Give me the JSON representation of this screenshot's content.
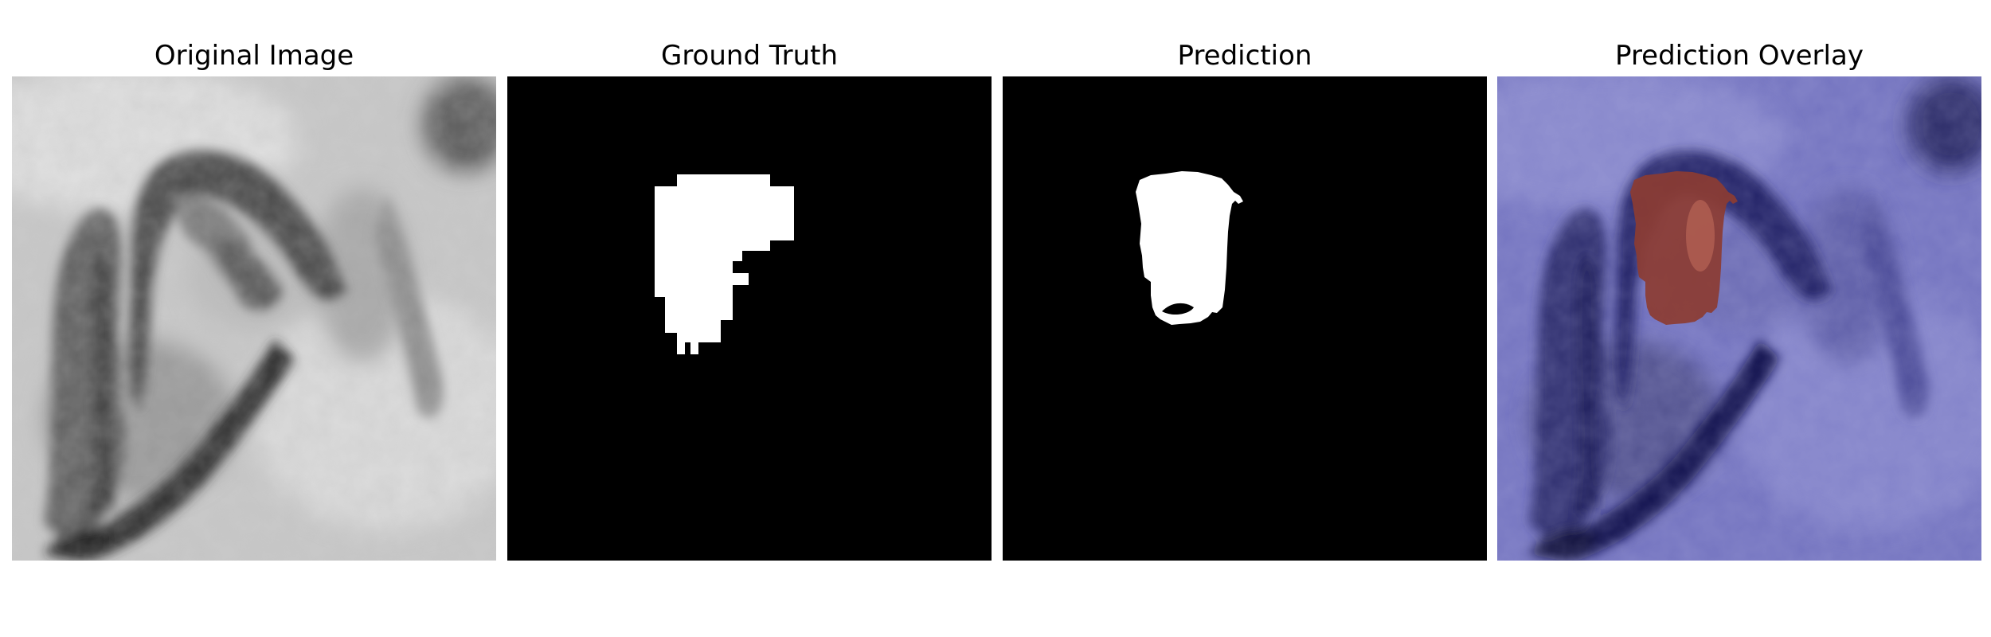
{
  "figure": {
    "panels": [
      {
        "title": "Original Image"
      },
      {
        "title": "Ground Truth"
      },
      {
        "title": "Prediction"
      },
      {
        "title": "Prediction Overlay"
      }
    ]
  }
}
